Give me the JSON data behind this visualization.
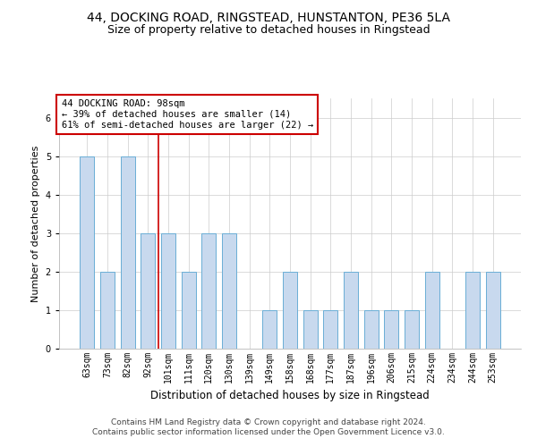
{
  "title": "44, DOCKING ROAD, RINGSTEAD, HUNSTANTON, PE36 5LA",
  "subtitle": "Size of property relative to detached houses in Ringstead",
  "xlabel": "Distribution of detached houses by size in Ringstead",
  "ylabel": "Number of detached properties",
  "categories": [
    "63sqm",
    "73sqm",
    "82sqm",
    "92sqm",
    "101sqm",
    "111sqm",
    "120sqm",
    "130sqm",
    "139sqm",
    "149sqm",
    "158sqm",
    "168sqm",
    "177sqm",
    "187sqm",
    "196sqm",
    "206sqm",
    "215sqm",
    "224sqm",
    "234sqm",
    "244sqm",
    "253sqm"
  ],
  "values": [
    5,
    2,
    5,
    3,
    3,
    2,
    3,
    3,
    0,
    1,
    2,
    1,
    1,
    2,
    1,
    1,
    1,
    2,
    0,
    2,
    2
  ],
  "bar_color": "#c8d9ee",
  "bar_edge_color": "#6aaed6",
  "grid_color": "#cccccc",
  "background_color": "#ffffff",
  "vline_x": 3.5,
  "vline_color": "#cc0000",
  "annotation_text": "44 DOCKING ROAD: 98sqm\n← 39% of detached houses are smaller (14)\n61% of semi-detached houses are larger (22) →",
  "annotation_box_color": "#ffffff",
  "annotation_box_edge": "#cc0000",
  "ylim": [
    0,
    6.5
  ],
  "yticks": [
    0,
    1,
    2,
    3,
    4,
    5,
    6
  ],
  "footer_line1": "Contains HM Land Registry data © Crown copyright and database right 2024.",
  "footer_line2": "Contains public sector information licensed under the Open Government Licence v3.0.",
  "title_fontsize": 10,
  "subtitle_fontsize": 9,
  "xlabel_fontsize": 8.5,
  "ylabel_fontsize": 8,
  "tick_fontsize": 7,
  "footer_fontsize": 6.5,
  "annotation_fontsize": 7.5,
  "bar_width": 0.7
}
